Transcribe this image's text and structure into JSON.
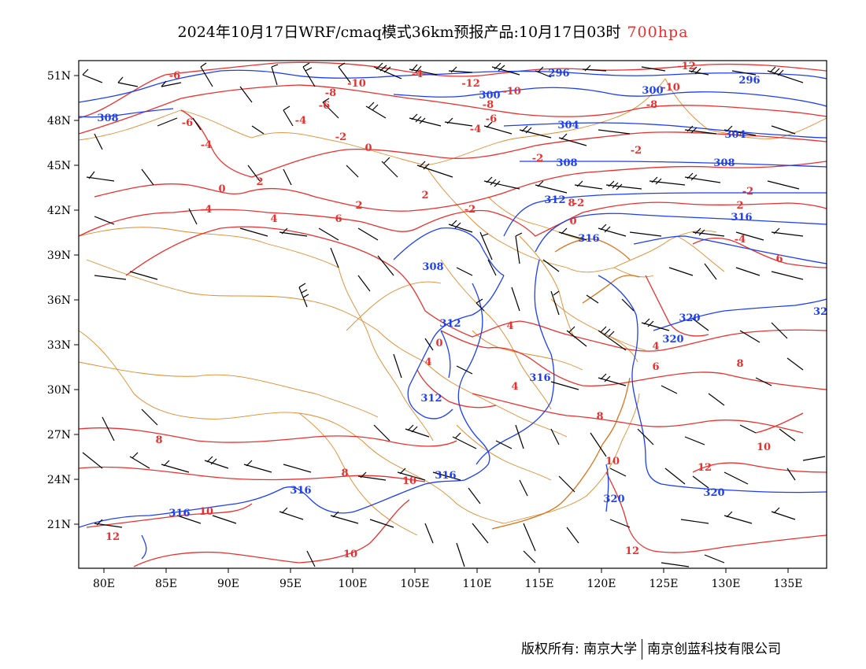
{
  "title": {
    "main": "2024年10月17日WRF/cmaq模式36km预报产品:10月17日03时",
    "level": "700hpa",
    "level_color": "#e8312f"
  },
  "map": {
    "projection": "lat-lon",
    "lon_range": [
      78,
      138
    ],
    "lat_range": [
      18,
      52
    ],
    "lat_ticks": [
      "51N",
      "48N",
      "45N",
      "42N",
      "39N",
      "36N",
      "33N",
      "30N",
      "27N",
      "24N",
      "21N"
    ],
    "lon_ticks": [
      "80E",
      "85E",
      "90E",
      "95E",
      "100E",
      "105E",
      "110E",
      "115E",
      "120E",
      "125E",
      "130E",
      "135E"
    ],
    "layers": {
      "geopotential_height": {
        "color": "#1e3ff0",
        "units": "dagpm"
      },
      "temperature": {
        "color": "#e8312f",
        "units": "°C"
      },
      "wind_barbs": {
        "color": "#000000"
      },
      "boundaries": {
        "color": "#e08a2a"
      }
    },
    "height_labels": [
      "296",
      "296",
      "300",
      "300",
      "304",
      "304",
      "308",
      "308",
      "308",
      "308",
      "312",
      "312",
      "312",
      "316",
      "316",
      "316",
      "316",
      "316",
      "316",
      "320",
      "320",
      "320",
      "320",
      "32"
    ],
    "temp_labels": [
      "-6",
      "-4",
      "-10",
      "-12",
      "-12",
      "-10",
      "-8",
      "-10",
      "-6",
      "-8",
      "-4",
      "-8",
      "-6",
      "-6",
      "-4",
      "-2",
      "-4",
      "-2",
      "0",
      "-2",
      "0",
      "2",
      "2",
      "-4",
      "2",
      "-2",
      "4",
      "6",
      "8",
      "-2",
      "0",
      "-4",
      "2",
      "6",
      "0",
      "4",
      "4",
      "6",
      "8",
      "8",
      "8",
      "12",
      "10",
      "10",
      "10",
      "10",
      "10",
      "12",
      "8",
      "12",
      "4",
      "4",
      "-2"
    ]
  },
  "footer": {
    "copyright": "版权所有: 南京大学",
    "company": "南京创蓝科技有限公司"
  }
}
